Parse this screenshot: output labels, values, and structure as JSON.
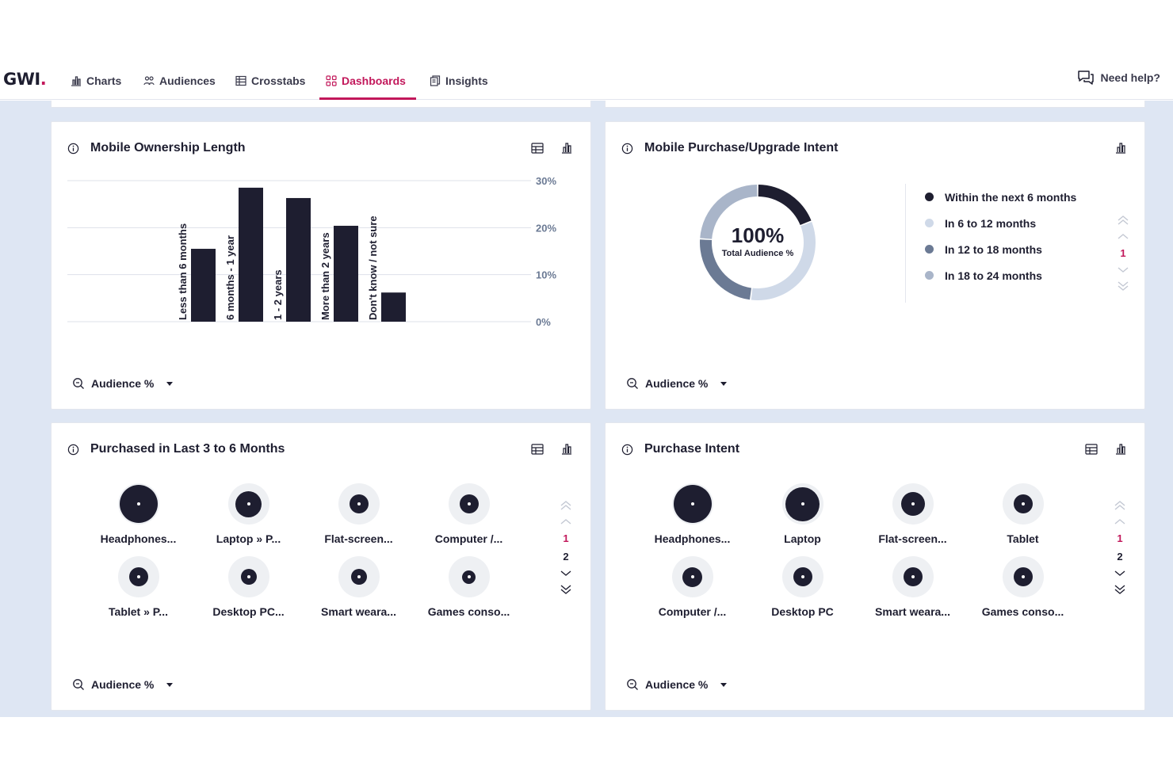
{
  "nav": {
    "logo": "GWI",
    "items": [
      {
        "label": "Charts",
        "icon": "bar-chart-icon"
      },
      {
        "label": "Audiences",
        "icon": "people-icon"
      },
      {
        "label": "Crosstabs",
        "icon": "table-icon"
      },
      {
        "label": "Dashboards",
        "icon": "dashboard-icon",
        "active": true
      },
      {
        "label": "Insights",
        "icon": "insights-icon"
      }
    ],
    "help_label": "Need help?"
  },
  "colors": {
    "accent": "#c2185b",
    "dark": "#1e1e30",
    "background": "#dee6f3"
  },
  "cards": [
    {
      "title": "Mobile Ownership Length",
      "metric_label": "Audience %",
      "chart_data": {
        "type": "bar",
        "categories": [
          "Less than 6 months",
          "6 months - 1 year",
          "1 - 2 years",
          "More than 2 years",
          "Don't know / not sure"
        ],
        "values": [
          15.5,
          28.5,
          26.3,
          20.4,
          6.2
        ],
        "ylim": [
          0,
          30
        ],
        "yticks": [
          "0%",
          "10%",
          "20%",
          "30%"
        ],
        "grid": true
      }
    },
    {
      "title": "Mobile Purchase/Upgrade Intent",
      "metric_label": "Audience %",
      "center_value": "100%",
      "center_label": "Total Audience %",
      "chart_data": {
        "type": "pie",
        "categories": [
          "Within the next 6 months",
          "In 6 to 12 months",
          "In 12 to 18 months",
          "In 18 to 24 months"
        ],
        "values": [
          19,
          33,
          24,
          24
        ],
        "colors": [
          "#1e1e30",
          "#cfd9e8",
          "#6b7a94",
          "#a9b5c9"
        ]
      },
      "legend": [
        {
          "label": "Within the next 6 months",
          "color": "#1e1e30"
        },
        {
          "label": "In 6 to 12 months",
          "color": "#cfd9e8"
        },
        {
          "label": "In 12 to 18 months",
          "color": "#6b7a94"
        },
        {
          "label": "In 18 to 24 months",
          "color": "#a9b5c9"
        }
      ],
      "pager": {
        "pages": [
          "1"
        ],
        "current": "1"
      }
    },
    {
      "title": "Purchased in Last 3 to 6 Months",
      "metric_label": "Audience %",
      "items": [
        {
          "label": "Headphones...",
          "size": 1.0
        },
        {
          "label": "Laptop » P...",
          "size": 0.68
        },
        {
          "label": "Flat-screen...",
          "size": 0.5
        },
        {
          "label": "Computer /...",
          "size": 0.5
        },
        {
          "label": "Tablet » P...",
          "size": 0.5
        },
        {
          "label": "Desktop PC...",
          "size": 0.42
        },
        {
          "label": "Smart weara...",
          "size": 0.42
        },
        {
          "label": "Games conso...",
          "size": 0.36
        }
      ],
      "pager": {
        "pages": [
          "1",
          "2"
        ],
        "current": "1"
      }
    },
    {
      "title": "Purchase Intent",
      "metric_label": "Audience %",
      "items": [
        {
          "label": "Headphones...",
          "size": 1.0
        },
        {
          "label": "Laptop",
          "size": 0.9
        },
        {
          "label": "Flat-screen...",
          "size": 0.62
        },
        {
          "label": "Tablet",
          "size": 0.5
        },
        {
          "label": "Computer /...",
          "size": 0.52
        },
        {
          "label": "Desktop PC",
          "size": 0.5
        },
        {
          "label": "Smart weara...",
          "size": 0.5
        },
        {
          "label": "Games conso...",
          "size": 0.5
        }
      ],
      "pager": {
        "pages": [
          "1",
          "2"
        ],
        "current": "1"
      }
    }
  ]
}
